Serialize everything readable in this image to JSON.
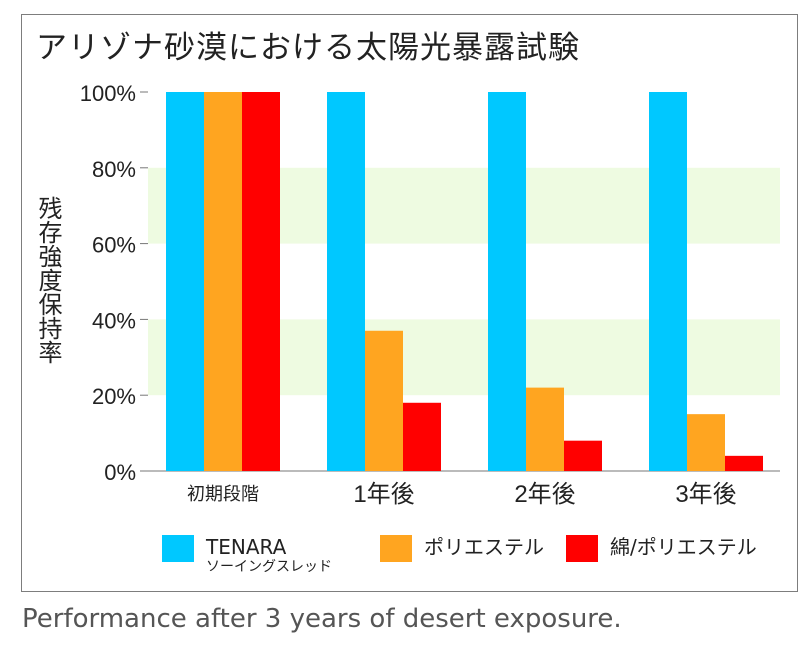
{
  "chart_data": {
    "type": "bar",
    "title": "アリゾナ砂漠における太陽光暴露試験",
    "ylabel": "残存強度保持率",
    "xlabel": "",
    "categories": [
      "初期段階",
      "1年後",
      "2年後",
      "3年後"
    ],
    "ylim": [
      0,
      100
    ],
    "y_ticks": [
      "0%",
      "20%",
      "40%",
      "60%",
      "80%",
      "100%"
    ],
    "y_tick_values": [
      0,
      20,
      40,
      60,
      80,
      100
    ],
    "shaded_bands": [
      [
        20,
        40
      ],
      [
        60,
        80
      ]
    ],
    "grid": false,
    "legend_position": "bottom",
    "series": [
      {
        "name": "TENARA",
        "subtitle": "ソーイングスレッド",
        "color": "#00c8ff",
        "values": [
          100,
          100,
          100,
          100
        ]
      },
      {
        "name": "ポリエステル",
        "color": "#ffa520",
        "values": [
          100,
          37,
          22,
          15
        ]
      },
      {
        "name": "綿/ポリエステル",
        "color": "#ff0000",
        "values": [
          100,
          18,
          8,
          4
        ]
      }
    ],
    "band_color": "#eefbe1"
  },
  "caption": "Performance after 3 years of desert exposure."
}
